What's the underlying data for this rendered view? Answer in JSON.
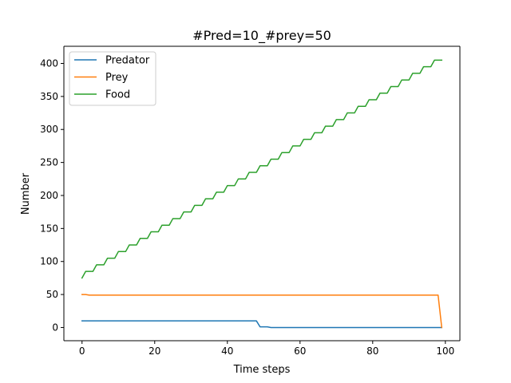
{
  "chart_data": {
    "type": "line",
    "title": "#Pred=10_#prey=50",
    "xlabel": "Time steps",
    "ylabel": "Number",
    "xlim": [
      -5,
      104
    ],
    "ylim": [
      -20,
      426
    ],
    "xticks": [
      0,
      20,
      40,
      60,
      80,
      100
    ],
    "yticks": [
      0,
      50,
      100,
      150,
      200,
      250,
      300,
      350,
      400
    ],
    "grid": false,
    "legend_position": "upper-left",
    "series": [
      {
        "name": "Predator",
        "color": "#1f77b4",
        "points": [
          [
            0,
            10
          ],
          [
            48,
            10
          ],
          [
            49,
            1
          ],
          [
            51,
            1
          ],
          [
            52,
            0
          ],
          [
            99,
            0
          ]
        ]
      },
      {
        "name": "Prey",
        "color": "#ff7f0e",
        "points": [
          [
            0,
            50
          ],
          [
            1,
            50
          ],
          [
            2,
            49
          ],
          [
            98,
            49
          ],
          [
            99,
            0
          ]
        ]
      },
      {
        "name": "Food",
        "color": "#2ca02c",
        "start_x": 0,
        "values": [
          75,
          85,
          85,
          85,
          95,
          95,
          95,
          105,
          105,
          105,
          115,
          115,
          115,
          125,
          125,
          125,
          135,
          135,
          135,
          145,
          145,
          145,
          155,
          155,
          155,
          165,
          165,
          165,
          175,
          175,
          175,
          185,
          185,
          185,
          195,
          195,
          195,
          205,
          205,
          205,
          215,
          215,
          215,
          225,
          225,
          225,
          235,
          235,
          235,
          245,
          245,
          245,
          255,
          255,
          255,
          265,
          265,
          265,
          275,
          275,
          275,
          285,
          285,
          285,
          295,
          295,
          295,
          305,
          305,
          305,
          315,
          315,
          315,
          325,
          325,
          325,
          335,
          335,
          335,
          345,
          345,
          345,
          355,
          355,
          355,
          365,
          365,
          365,
          375,
          375,
          375,
          385,
          385,
          385,
          395,
          395,
          395,
          405,
          405,
          405
        ]
      }
    ]
  }
}
